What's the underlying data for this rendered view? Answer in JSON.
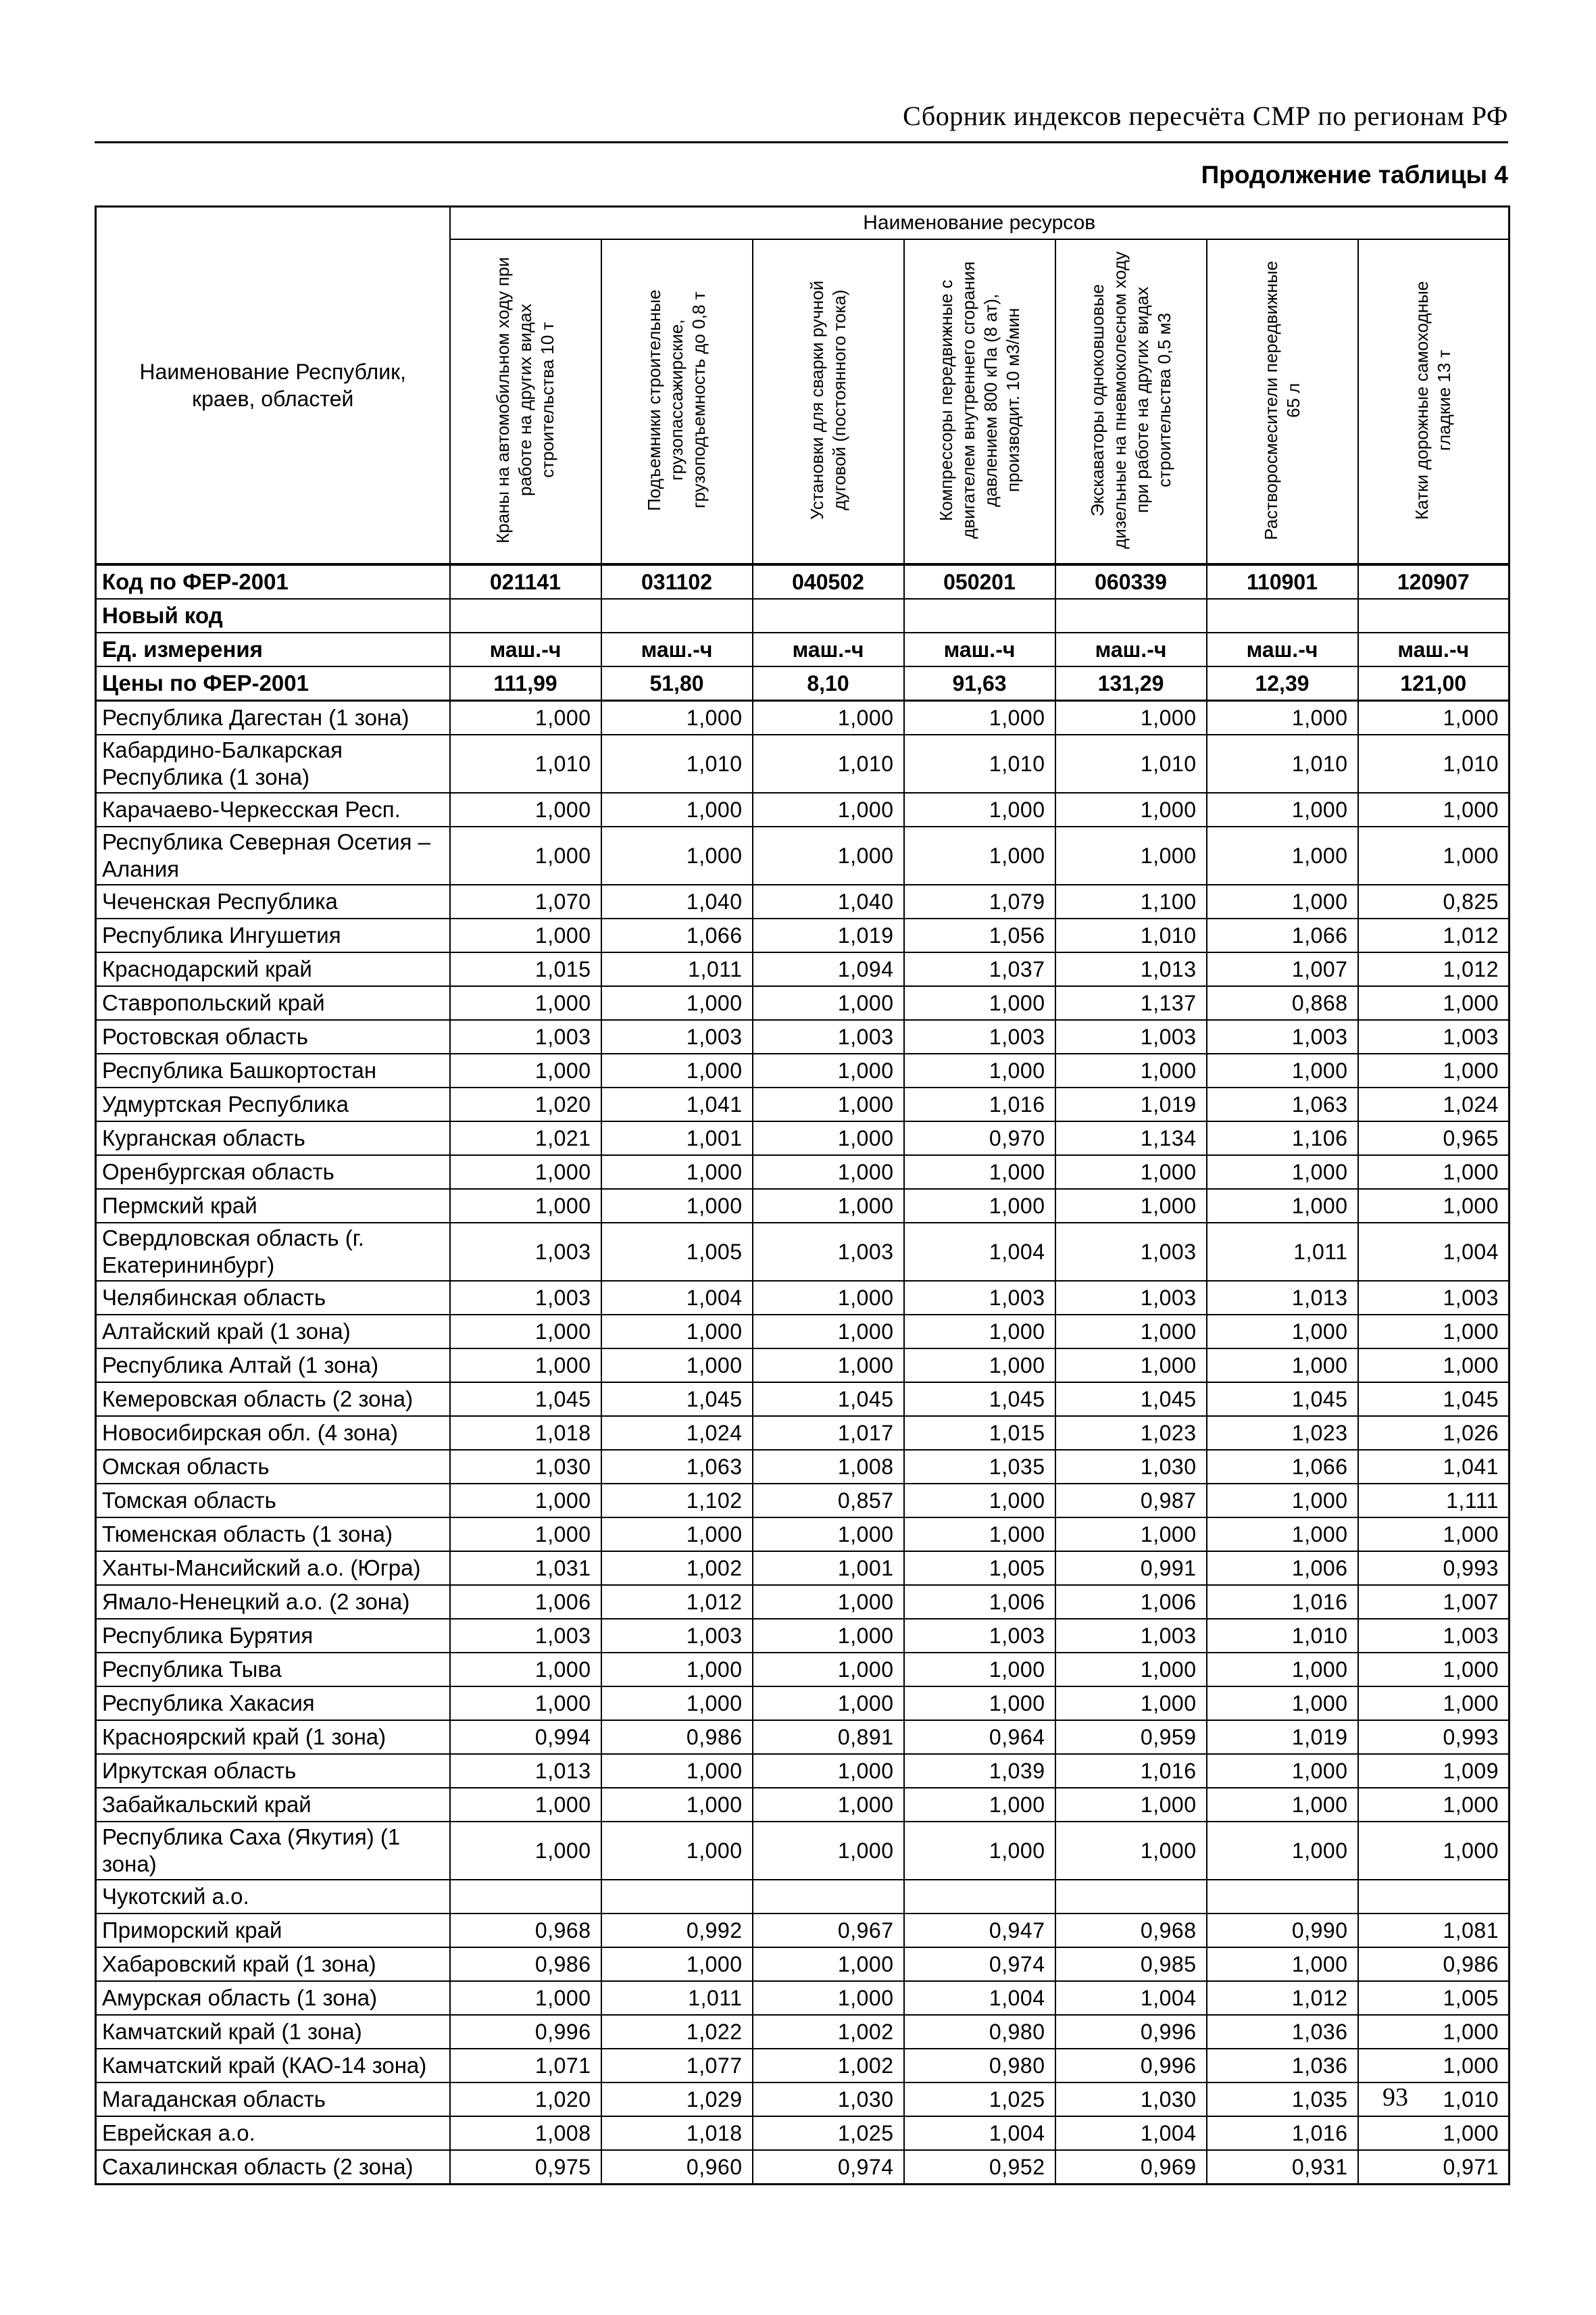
{
  "page": {
    "header": "Сборник индексов пересчёта СМР по регионам РФ",
    "subtitle": "Продолжение таблицы 4",
    "page_number": "93"
  },
  "table": {
    "corner_header": "Наименование Республик, краев, областей",
    "resources_header": "Наименование ресурсов",
    "columns": [
      "Краны на автомобильном ходу при работе на других видах строительства 10 т",
      "Подъемники строительные грузопассажирские, грузоподъемность до 0,8 т",
      "Установки для сварки ручной дуговой (постоянного тока)",
      "Компрессоры передвижные с двигателем внутреннего сгорания давлением 800 кПа (8 ат), производит. 10 м3/мин",
      "Экскаваторы одноковшовые дизельные на пневмоколесном ходу при работе на других видах строительства 0,5 м3",
      "Растворосмесители передвижные 65 л",
      "Катки дорожные самоходные гладкие 13 т"
    ],
    "meta_rows": [
      {
        "label": "Код по ФЕР-2001",
        "values": [
          "021141",
          "031102",
          "040502",
          "050201",
          "060339",
          "110901",
          "120907"
        ]
      },
      {
        "label": "Новый код",
        "values": [
          "",
          "",
          "",
          "",
          "",
          "",
          ""
        ]
      },
      {
        "label": "Ед. измерения",
        "values": [
          "маш.-ч",
          "маш.-ч",
          "маш.-ч",
          "маш.-ч",
          "маш.-ч",
          "маш.-ч",
          "маш.-ч"
        ]
      },
      {
        "label": "Цены по ФЕР-2001",
        "values": [
          "111,99",
          "51,80",
          "8,10",
          "91,63",
          "131,29",
          "12,39",
          "121,00"
        ]
      }
    ],
    "rows": [
      {
        "region": "Республика Дагестан (1 зона)",
        "values": [
          "1,000",
          "1,000",
          "1,000",
          "1,000",
          "1,000",
          "1,000",
          "1,000"
        ]
      },
      {
        "region": "Кабардино-Балкарская Республика (1 зона)",
        "values": [
          "1,010",
          "1,010",
          "1,010",
          "1,010",
          "1,010",
          "1,010",
          "1,010"
        ]
      },
      {
        "region": "Карачаево-Черкесская Респ.",
        "values": [
          "1,000",
          "1,000",
          "1,000",
          "1,000",
          "1,000",
          "1,000",
          "1,000"
        ]
      },
      {
        "region": "Республика Северная Осетия – Алания",
        "values": [
          "1,000",
          "1,000",
          "1,000",
          "1,000",
          "1,000",
          "1,000",
          "1,000"
        ]
      },
      {
        "region": "Чеченская Республика",
        "values": [
          "1,070",
          "1,040",
          "1,040",
          "1,079",
          "1,100",
          "1,000",
          "0,825"
        ]
      },
      {
        "region": "Республика Ингушетия",
        "values": [
          "1,000",
          "1,066",
          "1,019",
          "1,056",
          "1,010",
          "1,066",
          "1,012"
        ]
      },
      {
        "region": "Краснодарский край",
        "values": [
          "1,015",
          "1,011",
          "1,094",
          "1,037",
          "1,013",
          "1,007",
          "1,012"
        ]
      },
      {
        "region": "Ставропольский край",
        "values": [
          "1,000",
          "1,000",
          "1,000",
          "1,000",
          "1,137",
          "0,868",
          "1,000"
        ]
      },
      {
        "region": "Ростовская область",
        "values": [
          "1,003",
          "1,003",
          "1,003",
          "1,003",
          "1,003",
          "1,003",
          "1,003"
        ]
      },
      {
        "region": "Республика Башкортостан",
        "values": [
          "1,000",
          "1,000",
          "1,000",
          "1,000",
          "1,000",
          "1,000",
          "1,000"
        ]
      },
      {
        "region": "Удмуртская Республика",
        "values": [
          "1,020",
          "1,041",
          "1,000",
          "1,016",
          "1,019",
          "1,063",
          "1,024"
        ]
      },
      {
        "region": "Курганская область",
        "values": [
          "1,021",
          "1,001",
          "1,000",
          "0,970",
          "1,134",
          "1,106",
          "0,965"
        ]
      },
      {
        "region": "Оренбургская область",
        "values": [
          "1,000",
          "1,000",
          "1,000",
          "1,000",
          "1,000",
          "1,000",
          "1,000"
        ]
      },
      {
        "region": "Пермский край",
        "values": [
          "1,000",
          "1,000",
          "1,000",
          "1,000",
          "1,000",
          "1,000",
          "1,000"
        ]
      },
      {
        "region": "Свердловская область (г. Екатерининбург)",
        "values": [
          "1,003",
          "1,005",
          "1,003",
          "1,004",
          "1,003",
          "1,011",
          "1,004"
        ]
      },
      {
        "region": "Челябинская область",
        "values": [
          "1,003",
          "1,004",
          "1,000",
          "1,003",
          "1,003",
          "1,013",
          "1,003"
        ]
      },
      {
        "region": "Алтайский край (1 зона)",
        "values": [
          "1,000",
          "1,000",
          "1,000",
          "1,000",
          "1,000",
          "1,000",
          "1,000"
        ]
      },
      {
        "region": "Республика Алтай (1 зона)",
        "values": [
          "1,000",
          "1,000",
          "1,000",
          "1,000",
          "1,000",
          "1,000",
          "1,000"
        ]
      },
      {
        "region": "Кемеровская область (2 зона)",
        "values": [
          "1,045",
          "1,045",
          "1,045",
          "1,045",
          "1,045",
          "1,045",
          "1,045"
        ]
      },
      {
        "region": "Новосибирская обл. (4 зона)",
        "values": [
          "1,018",
          "1,024",
          "1,017",
          "1,015",
          "1,023",
          "1,023",
          "1,026"
        ]
      },
      {
        "region": "Омская область",
        "values": [
          "1,030",
          "1,063",
          "1,008",
          "1,035",
          "1,030",
          "1,066",
          "1,041"
        ]
      },
      {
        "region": "Томская область",
        "values": [
          "1,000",
          "1,102",
          "0,857",
          "1,000",
          "0,987",
          "1,000",
          "1,111"
        ]
      },
      {
        "region": "Тюменская область (1 зона)",
        "values": [
          "1,000",
          "1,000",
          "1,000",
          "1,000",
          "1,000",
          "1,000",
          "1,000"
        ]
      },
      {
        "region": "Ханты-Мансийский а.о. (Югра)",
        "values": [
          "1,031",
          "1,002",
          "1,001",
          "1,005",
          "0,991",
          "1,006",
          "0,993"
        ]
      },
      {
        "region": "Ямало-Ненецкий а.о. (2 зона)",
        "values": [
          "1,006",
          "1,012",
          "1,000",
          "1,006",
          "1,006",
          "1,016",
          "1,007"
        ]
      },
      {
        "region": "Республика Бурятия",
        "values": [
          "1,003",
          "1,003",
          "1,000",
          "1,003",
          "1,003",
          "1,010",
          "1,003"
        ]
      },
      {
        "region": "Республика Тыва",
        "values": [
          "1,000",
          "1,000",
          "1,000",
          "1,000",
          "1,000",
          "1,000",
          "1,000"
        ]
      },
      {
        "region": "Республика Хакасия",
        "values": [
          "1,000",
          "1,000",
          "1,000",
          "1,000",
          "1,000",
          "1,000",
          "1,000"
        ]
      },
      {
        "region": "Красноярский край (1 зона)",
        "values": [
          "0,994",
          "0,986",
          "0,891",
          "0,964",
          "0,959",
          "1,019",
          "0,993"
        ]
      },
      {
        "region": "Иркутская область",
        "values": [
          "1,013",
          "1,000",
          "1,000",
          "1,039",
          "1,016",
          "1,000",
          "1,009"
        ]
      },
      {
        "region": "Забайкальский край",
        "values": [
          "1,000",
          "1,000",
          "1,000",
          "1,000",
          "1,000",
          "1,000",
          "1,000"
        ]
      },
      {
        "region": "Республика Саха (Якутия) (1 зона)",
        "values": [
          "1,000",
          "1,000",
          "1,000",
          "1,000",
          "1,000",
          "1,000",
          "1,000"
        ]
      },
      {
        "region": "Чукотский а.о.",
        "values": [
          "",
          "",
          "",
          "",
          "",
          "",
          ""
        ]
      },
      {
        "region": "Приморский край",
        "values": [
          "0,968",
          "0,992",
          "0,967",
          "0,947",
          "0,968",
          "0,990",
          "1,081"
        ]
      },
      {
        "region": "Хабаровский край (1 зона)",
        "values": [
          "0,986",
          "1,000",
          "1,000",
          "0,974",
          "0,985",
          "1,000",
          "0,986"
        ]
      },
      {
        "region": "Амурская область (1 зона)",
        "values": [
          "1,000",
          "1,011",
          "1,000",
          "1,004",
          "1,004",
          "1,012",
          "1,005"
        ]
      },
      {
        "region": "Камчатский край (1 зона)",
        "values": [
          "0,996",
          "1,022",
          "1,002",
          "0,980",
          "0,996",
          "1,036",
          "1,000"
        ]
      },
      {
        "region": "Камчатский край (КАО-14 зона)",
        "values": [
          "1,071",
          "1,077",
          "1,002",
          "0,980",
          "0,996",
          "1,036",
          "1,000"
        ]
      },
      {
        "region": "Магаданская область",
        "values": [
          "1,020",
          "1,029",
          "1,030",
          "1,025",
          "1,030",
          "1,035",
          "1,010"
        ]
      },
      {
        "region": "Еврейская а.о.",
        "values": [
          "1,008",
          "1,018",
          "1,025",
          "1,004",
          "1,004",
          "1,016",
          "1,000"
        ]
      },
      {
        "region": "Сахалинская область (2 зона)",
        "values": [
          "0,975",
          "0,960",
          "0,974",
          "0,952",
          "0,969",
          "0,931",
          "0,971"
        ]
      }
    ]
  }
}
